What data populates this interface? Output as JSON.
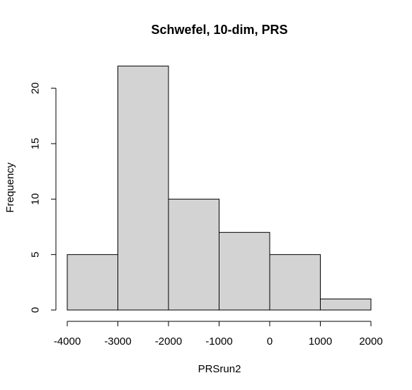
{
  "chart_data": {
    "type": "bar",
    "title": "Schwefel, 10-dim, PRS",
    "xlabel": "PRSrun2",
    "ylabel": "Frequency",
    "bins": [
      {
        "start": -4000,
        "end": -3000,
        "count": 5
      },
      {
        "start": -3000,
        "end": -2000,
        "count": 22
      },
      {
        "start": -2000,
        "end": -1000,
        "count": 10
      },
      {
        "start": -1000,
        "end": 0,
        "count": 7
      },
      {
        "start": 0,
        "end": 1000,
        "count": 5
      },
      {
        "start": 1000,
        "end": 2000,
        "count": 1
      }
    ],
    "xlim": [
      -4000,
      2000
    ],
    "ylim": [
      0,
      22
    ],
    "xticks": [
      -4000,
      -3000,
      -2000,
      -1000,
      0,
      1000,
      2000
    ],
    "xtick_labels": [
      "-4000",
      "-3000",
      "-2000",
      "-1000",
      "0",
      "1000",
      "2000"
    ],
    "yticks": [
      0,
      5,
      10,
      15,
      20
    ],
    "ytick_labels": [
      "0",
      "5",
      "10",
      "15",
      "20"
    ],
    "bar_color": "#d3d3d3",
    "edge_color": "#000000",
    "grid": false,
    "legend": "none"
  }
}
